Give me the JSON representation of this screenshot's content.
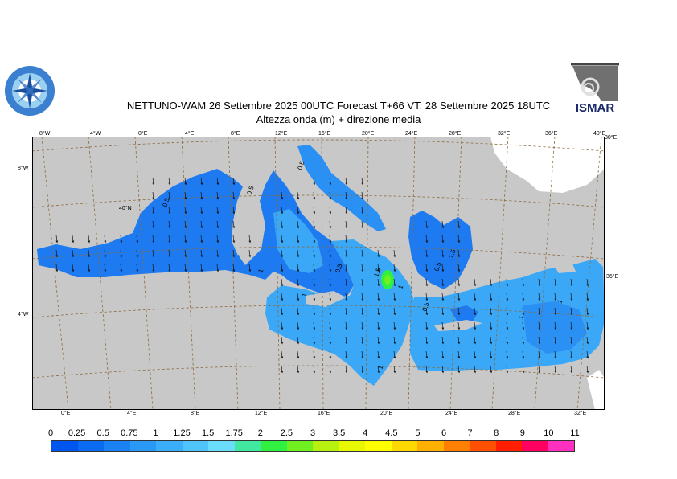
{
  "header": {
    "title": "NETTUNO-WAM  26 Settembre 2025 00UTC Forecast T+66 VT: 28 Settembre 2025 18UTC",
    "subtitle": "Altezza onda (m) + direzione media"
  },
  "logos": {
    "right_text": "ISMAR"
  },
  "map": {
    "top_ticks": [
      "8°W",
      "4°W",
      "0°E",
      "4°E",
      "8°E",
      "12°E",
      "16°E",
      "20°E",
      "24°E",
      "28°E",
      "32°E",
      "36°E",
      "40°E"
    ],
    "top_right_tick": "30°E",
    "bottom_ticks": [
      "0°E",
      "4°E",
      "8°E",
      "12°E",
      "16°E",
      "20°E",
      "24°E",
      "28°E",
      "32°E"
    ],
    "left_ticks": [
      "8°W",
      "4°W"
    ],
    "inner_lat_label": "40°N",
    "right_tick": "36°E",
    "contour_labels": [
      "0.5",
      "0.5",
      "0.5",
      "1",
      "1",
      "0.5",
      "1.5",
      "1",
      "0.5",
      "0.5",
      "1.5",
      "1",
      "1",
      "1"
    ],
    "colors": {
      "land": "#c8c8c8",
      "grid": "#8b6b3d"
    }
  },
  "colorbar": {
    "labels": [
      "0",
      "0.25",
      "0.5",
      "0.75",
      "1",
      "1.25",
      "1.5",
      "1.75",
      "2",
      "2.5",
      "3",
      "3.5",
      "4",
      "4.5",
      "5",
      "6",
      "7",
      "8",
      "9",
      "10",
      "11"
    ],
    "colors": [
      "#0055ee",
      "#0a6bf0",
      "#1a82f2",
      "#2a98f5",
      "#3aaef8",
      "#4ec4fa",
      "#6adcfc",
      "#40e8a0",
      "#30f040",
      "#70f020",
      "#b8f010",
      "#e8f800",
      "#ffff00",
      "#ffd800",
      "#ffb000",
      "#ff8000",
      "#ff5000",
      "#ff1e00",
      "#ff0060",
      "#ff30c0"
    ]
  }
}
